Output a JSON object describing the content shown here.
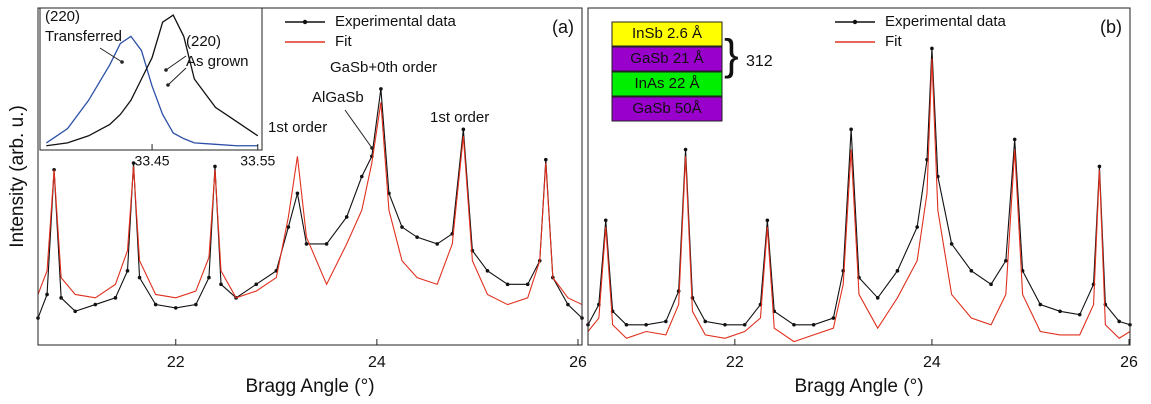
{
  "chart_data": [
    {
      "type": "line",
      "panel_label": "(a)",
      "xlabel": "Bragg Angle (°)",
      "ylabel": "Intensity (arb. u.)",
      "xlim": [
        20.63,
        26.04
      ],
      "xticks": [
        22,
        24,
        26
      ],
      "ylim": [
        0,
        100
      ],
      "grid": false,
      "legend": "top",
      "x": [
        20.63,
        20.72,
        20.79,
        20.86,
        21.0,
        21.2,
        21.4,
        21.52,
        21.58,
        21.64,
        21.8,
        22.0,
        22.2,
        22.33,
        22.39,
        22.45,
        22.6,
        22.8,
        23.0,
        23.12,
        23.21,
        23.3,
        23.5,
        23.7,
        23.85,
        23.95,
        24.04,
        24.12,
        24.25,
        24.4,
        24.6,
        24.75,
        24.86,
        24.95,
        25.1,
        25.3,
        25.5,
        25.62,
        25.68,
        25.75,
        25.9,
        26.04
      ],
      "series": [
        {
          "name": "Experimental data",
          "color": "#111111",
          "values": [
            8,
            15,
            52,
            14,
            10,
            12,
            14,
            22,
            54,
            20,
            12,
            11,
            12,
            20,
            53,
            18,
            14,
            18,
            22,
            35,
            45,
            30,
            30,
            38,
            50,
            56,
            76,
            45,
            35,
            32,
            30,
            33,
            64,
            28,
            22,
            18,
            18,
            25,
            55,
            20,
            12,
            8
          ]
        },
        {
          "name": "Fit",
          "color": "#e0301e",
          "values": [
            15,
            22,
            52,
            20,
            15,
            14,
            18,
            28,
            53,
            25,
            15,
            14,
            16,
            26,
            52,
            22,
            14,
            16,
            20,
            38,
            56,
            32,
            18,
            30,
            40,
            54,
            72,
            40,
            25,
            20,
            18,
            30,
            62,
            25,
            15,
            12,
            14,
            25,
            54,
            20,
            14,
            12
          ]
        }
      ],
      "annotations": [
        "(220)",
        "Transferred",
        "(220)",
        "As grown",
        "GaSb+0th order",
        "AlGaSb",
        "1st order",
        "1st order"
      ]
    },
    {
      "type": "line",
      "panel_label": "(b)",
      "xlabel": "Bragg Angle (°)",
      "xlim": [
        20.51,
        26.01
      ],
      "xticks": [
        22,
        24,
        26
      ],
      "ylim": [
        0,
        100
      ],
      "grid": false,
      "legend": "top",
      "x": [
        20.51,
        20.62,
        20.69,
        20.76,
        20.9,
        21.1,
        21.3,
        21.43,
        21.5,
        21.57,
        21.7,
        21.9,
        22.1,
        22.26,
        22.33,
        22.4,
        22.6,
        22.8,
        23.0,
        23.1,
        23.18,
        23.26,
        23.45,
        23.65,
        23.85,
        23.95,
        24.0,
        24.06,
        24.2,
        24.4,
        24.6,
        24.75,
        24.84,
        24.92,
        25.1,
        25.3,
        25.5,
        25.64,
        25.7,
        25.76,
        25.9,
        26.01
      ],
      "series": [
        {
          "name": "Experimental data",
          "color": "#111111",
          "values": [
            6,
            12,
            37,
            10,
            6,
            6,
            7,
            16,
            58,
            14,
            7,
            6,
            6,
            12,
            37,
            10,
            6,
            6,
            8,
            22,
            64,
            20,
            14,
            22,
            35,
            55,
            88,
            50,
            30,
            22,
            18,
            25,
            61,
            22,
            12,
            10,
            9,
            18,
            53,
            12,
            7,
            6
          ]
        },
        {
          "name": "Fit",
          "color": "#e0301e",
          "values": [
            4,
            8,
            35,
            6,
            2,
            4,
            3,
            12,
            56,
            10,
            3,
            2,
            4,
            8,
            35,
            5,
            1,
            3,
            5,
            18,
            58,
            15,
            5,
            14,
            25,
            45,
            85,
            40,
            15,
            8,
            6,
            15,
            58,
            15,
            4,
            3,
            3,
            12,
            52,
            6,
            2,
            4
          ]
        }
      ],
      "layers": [
        {
          "label": "InSb 2.6 Å",
          "color": "#ffff00"
        },
        {
          "label": "GaSb 21 Å",
          "color": "#9900cc"
        },
        {
          "label": "InAs 22 Å",
          "color": "#00ee00"
        },
        {
          "label": "GaSb 50Å",
          "color": "#9900cc"
        }
      ],
      "bracket_label": "312"
    },
    {
      "type": "line",
      "xlim": [
        33.344,
        33.554
      ],
      "xticks": [
        33.45,
        33.55
      ],
      "ylim": [
        0,
        100
      ],
      "grid": false,
      "x": [
        33.35,
        33.37,
        33.39,
        33.41,
        33.42,
        33.43,
        33.44,
        33.45,
        33.46,
        33.47,
        33.48,
        33.49,
        33.51,
        33.53,
        33.55
      ],
      "series": [
        {
          "color": "#2c4fa8",
          "values": [
            5,
            15,
            35,
            60,
            75,
            80,
            70,
            45,
            25,
            12,
            8,
            5,
            4,
            3,
            3
          ]
        },
        {
          "color": "#111111",
          "values": [
            3,
            5,
            10,
            18,
            25,
            35,
            50,
            65,
            90,
            95,
            80,
            50,
            30,
            20,
            10
          ]
        }
      ]
    }
  ]
}
